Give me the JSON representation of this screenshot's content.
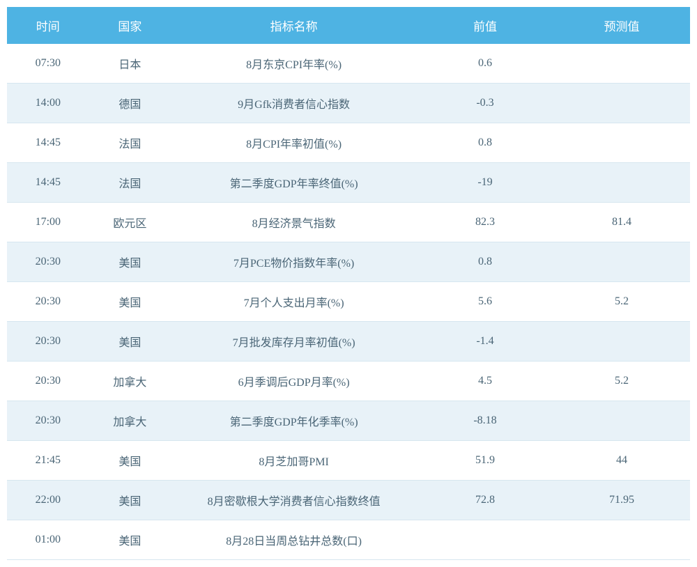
{
  "table": {
    "header_bg": "#4eb3e3",
    "header_text_color": "#ffffff",
    "row_odd_bg": "#ffffff",
    "row_even_bg": "#e8f2f8",
    "border_color": "#d6e6ef",
    "cell_text_color": "#4a6576",
    "header_fontsize": 17,
    "cell_fontsize": 16,
    "columns": [
      {
        "key": "time",
        "label": "时间",
        "width": "12%"
      },
      {
        "key": "country",
        "label": "国家",
        "width": "12%"
      },
      {
        "key": "indicator",
        "label": "指标名称",
        "width": "36%"
      },
      {
        "key": "previous",
        "label": "前值",
        "width": "20%"
      },
      {
        "key": "forecast",
        "label": "预测值",
        "width": "20%"
      }
    ],
    "rows": [
      {
        "time": "07:30",
        "country": "日本",
        "indicator": "8月东京CPI年率(%)",
        "previous": "0.6",
        "forecast": ""
      },
      {
        "time": "14:00",
        "country": "德国",
        "indicator": "9月Gfk消费者信心指数",
        "previous": "-0.3",
        "forecast": ""
      },
      {
        "time": "14:45",
        "country": "法国",
        "indicator": "8月CPI年率初值(%)",
        "previous": "0.8",
        "forecast": ""
      },
      {
        "time": "14:45",
        "country": "法国",
        "indicator": "第二季度GDP年率终值(%)",
        "previous": "-19",
        "forecast": ""
      },
      {
        "time": "17:00",
        "country": "欧元区",
        "indicator": "8月经济景气指数",
        "previous": "82.3",
        "forecast": "81.4"
      },
      {
        "time": "20:30",
        "country": "美国",
        "indicator": "7月PCE物价指数年率(%)",
        "previous": "0.8",
        "forecast": ""
      },
      {
        "time": "20:30",
        "country": "美国",
        "indicator": "7月个人支出月率(%)",
        "previous": "5.6",
        "forecast": "5.2"
      },
      {
        "time": "20:30",
        "country": "美国",
        "indicator": "7月批发库存月率初值(%)",
        "previous": "-1.4",
        "forecast": ""
      },
      {
        "time": "20:30",
        "country": "加拿大",
        "indicator": "6月季调后GDP月率(%)",
        "previous": "4.5",
        "forecast": "5.2"
      },
      {
        "time": "20:30",
        "country": "加拿大",
        "indicator": "第二季度GDP年化季率(%)",
        "previous": "-8.18",
        "forecast": ""
      },
      {
        "time": "21:45",
        "country": "美国",
        "indicator": "8月芝加哥PMI",
        "previous": "51.9",
        "forecast": "44"
      },
      {
        "time": "22:00",
        "country": "美国",
        "indicator": "8月密歇根大学消费者信心指数终值",
        "previous": "72.8",
        "forecast": "71.95"
      },
      {
        "time": "01:00",
        "country": "美国",
        "indicator": "8月28日当周总钻井总数(口)",
        "previous": "",
        "forecast": ""
      }
    ]
  }
}
